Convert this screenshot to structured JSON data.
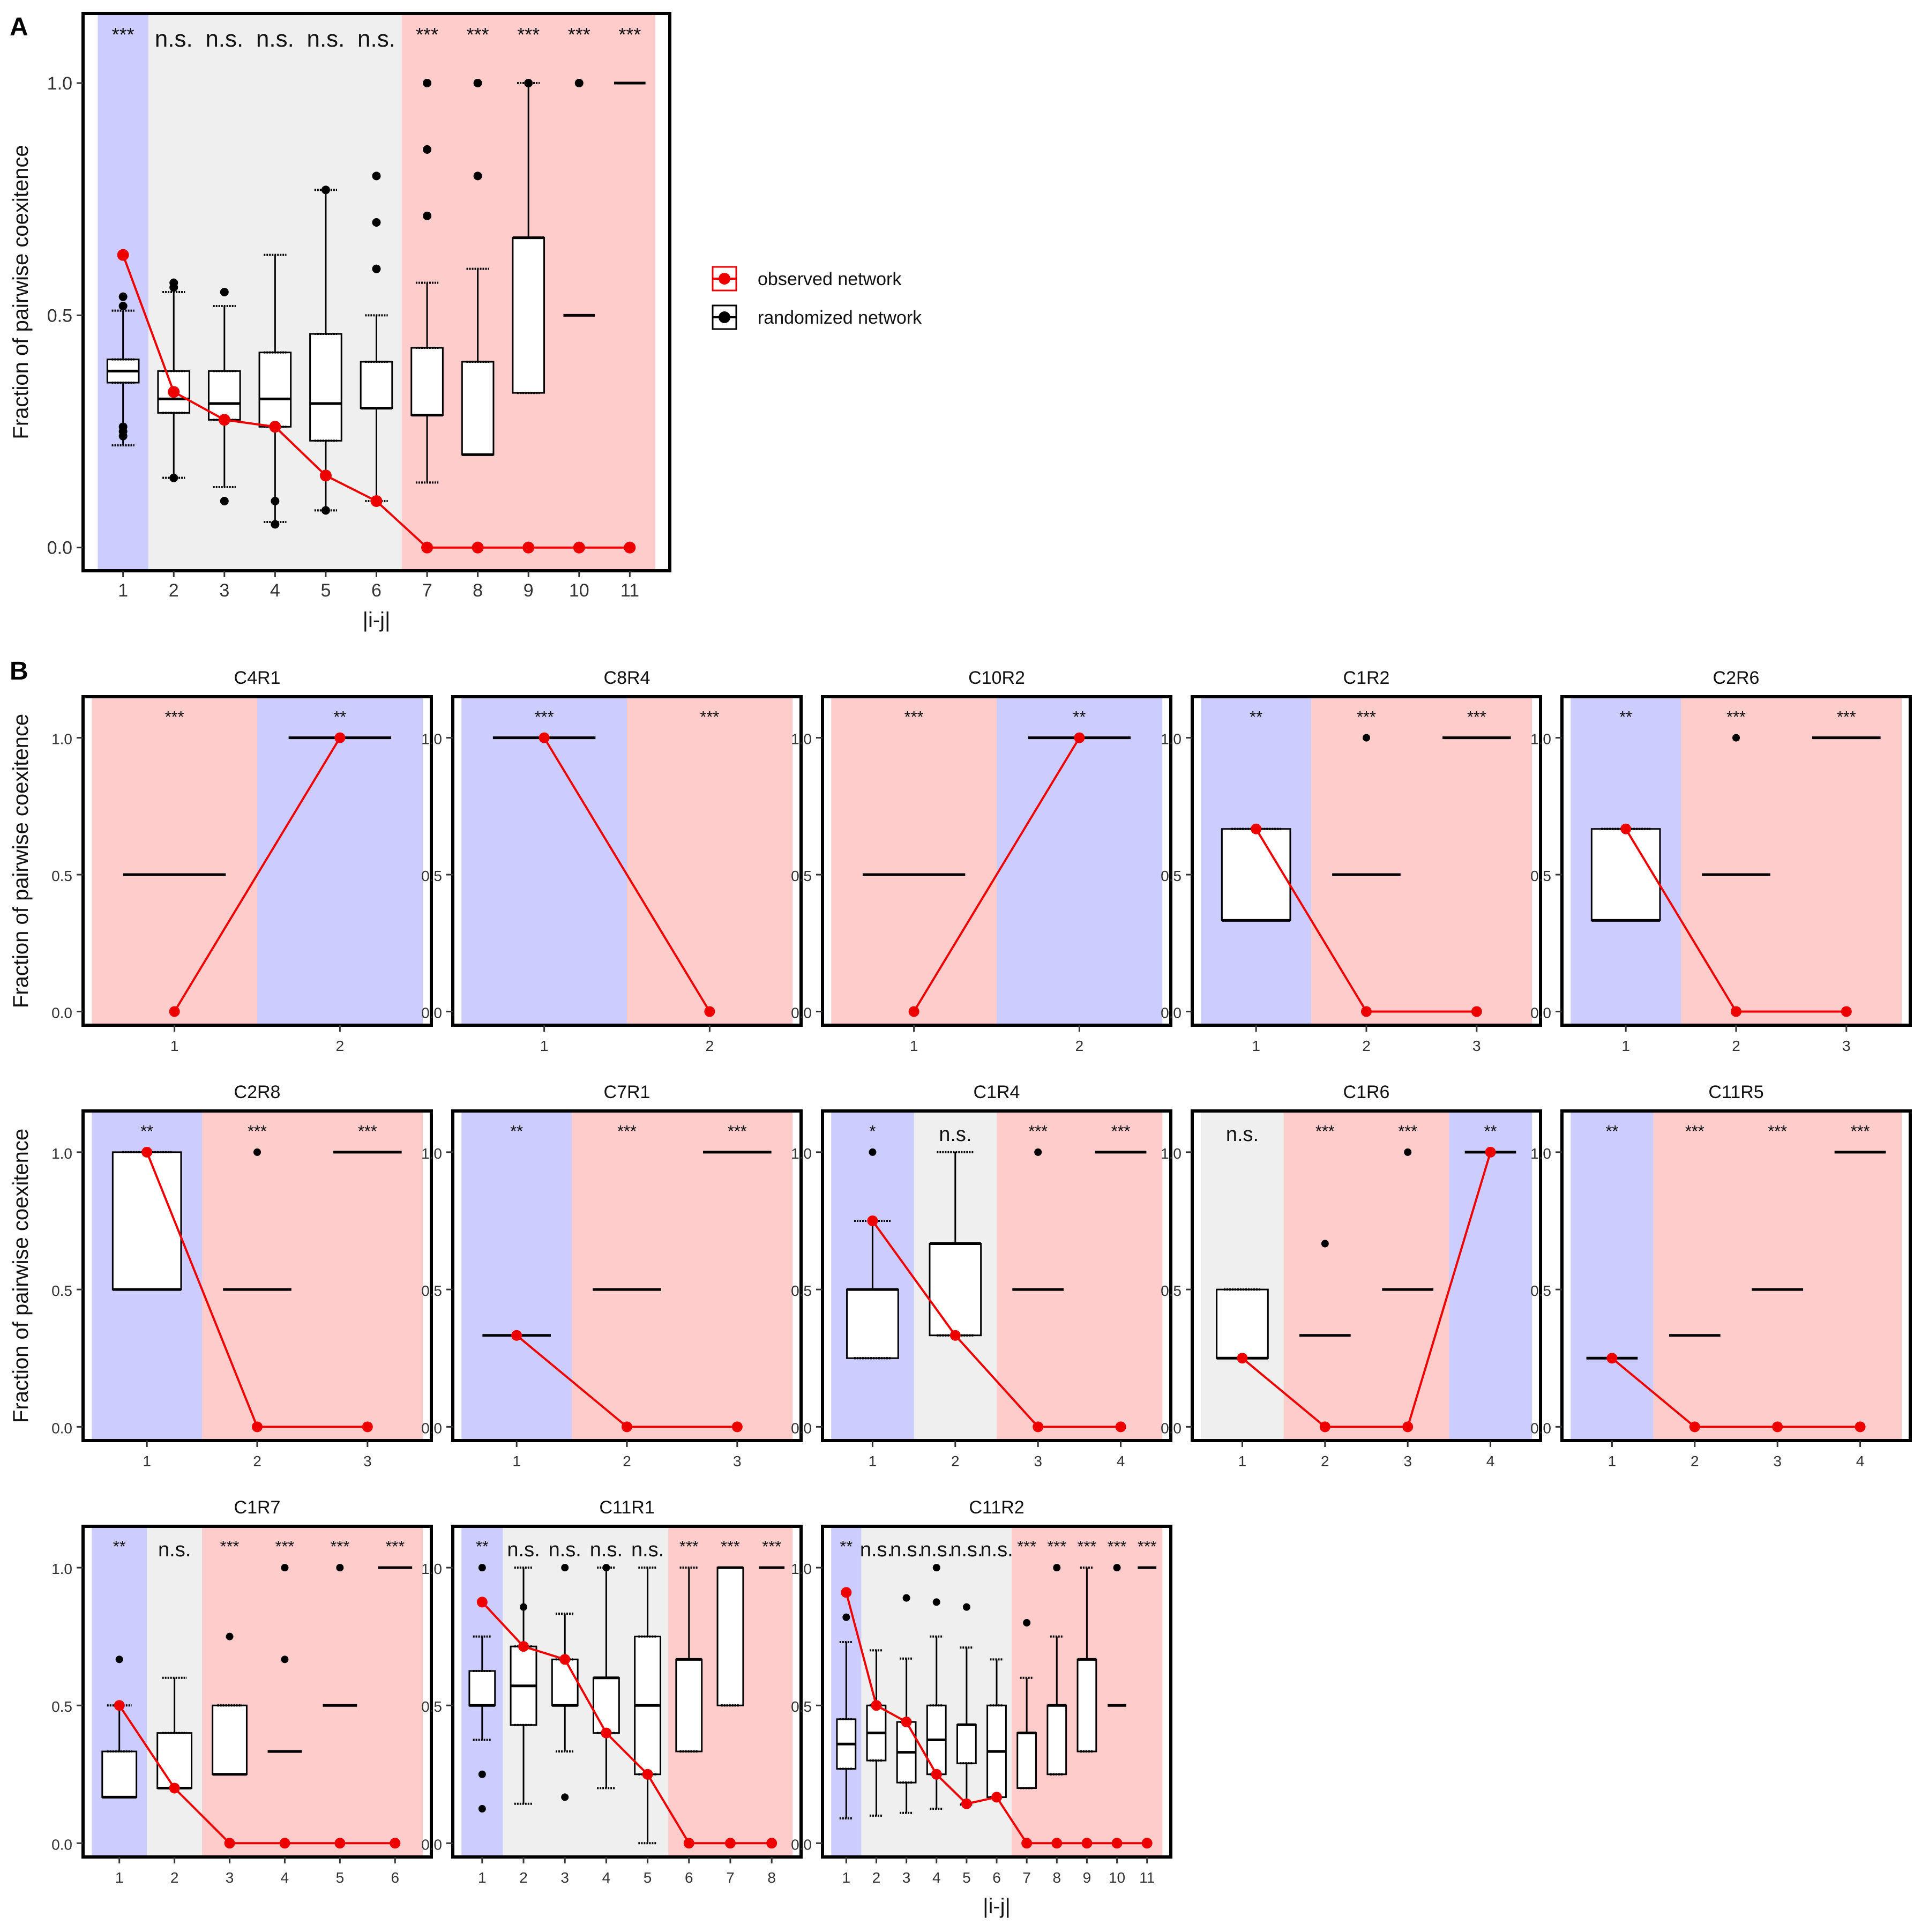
{
  "figure": {
    "panel_labels": [
      "A",
      "B"
    ],
    "colors": {
      "positive_band": "#ccccff",
      "neutral_band": "#efefef",
      "negative_band": "#ffcccc",
      "observed": "#ee0000",
      "randomized": "#000000"
    }
  },
  "chart_data": [
    {
      "id": "A",
      "type": "box",
      "title": "",
      "xlabel": "|i-j|",
      "ylabel": "Fraction of pairwise coexitence",
      "ylim": [
        -0.05,
        1.15
      ],
      "yticks": [
        "0.0",
        "0.5",
        "1.0"
      ],
      "legend": {
        "placement": "right",
        "entries": [
          "observed network",
          "randomized network"
        ]
      },
      "categories": [
        "1",
        "2",
        "3",
        "4",
        "5",
        "6",
        "7",
        "8",
        "9",
        "10",
        "11"
      ],
      "bands": [
        "blue",
        "grey",
        "grey",
        "grey",
        "grey",
        "grey",
        "red",
        "red",
        "red",
        "red",
        "red"
      ],
      "signif": [
        "***",
        "n.s.",
        "n.s.",
        "n.s.",
        "n.s.",
        "n.s.",
        "***",
        "***",
        "***",
        "***",
        "***"
      ],
      "observed": [
        0.63,
        0.335,
        0.275,
        0.26,
        0.155,
        0.1,
        0,
        0,
        0,
        0,
        0
      ],
      "boxes": [
        {
          "lo": 0.22,
          "q1": 0.355,
          "med": 0.38,
          "q3": 0.405,
          "hi": 0.51
        },
        {
          "lo": 0.15,
          "q1": 0.29,
          "med": 0.32,
          "q3": 0.38,
          "hi": 0.55
        },
        {
          "lo": 0.13,
          "q1": 0.275,
          "med": 0.31,
          "q3": 0.38,
          "hi": 0.52
        },
        {
          "lo": 0.055,
          "q1": 0.26,
          "med": 0.32,
          "q3": 0.42,
          "hi": 0.63
        },
        {
          "lo": 0.08,
          "q1": 0.23,
          "med": 0.31,
          "q3": 0.46,
          "hi": 0.77
        },
        {
          "lo": 0.1,
          "q1": 0.3,
          "med": 0.3,
          "q3": 0.4,
          "hi": 0.5
        },
        {
          "lo": 0.14,
          "q1": 0.285,
          "med": 0.285,
          "q3": 0.43,
          "hi": 0.57
        },
        {
          "lo": 0.2,
          "q1": 0.2,
          "med": 0.2,
          "q3": 0.4,
          "hi": 0.6
        },
        {
          "lo": 0.333,
          "q1": 0.333,
          "med": 0.667,
          "q3": 0.667,
          "hi": 1.0
        },
        {
          "lo": 0.5,
          "q1": 0.5,
          "med": 0.5,
          "q3": 0.5,
          "hi": 0.5
        },
        {
          "lo": 1.0,
          "q1": 1.0,
          "med": 1.0,
          "q3": 1.0,
          "hi": 1.0
        }
      ],
      "outliers": [
        [
          0.54,
          0.52,
          0.24,
          0.25,
          0.26
        ],
        [
          0.57,
          0.56,
          0.15
        ],
        [
          0.55,
          0.1
        ],
        [
          0.05,
          0.1
        ],
        [
          0.77,
          0.08
        ],
        [
          0.8,
          0.7,
          0.6,
          0.1
        ],
        [
          1.0,
          0.857,
          0.714
        ],
        [
          1.0,
          0.8
        ],
        [
          1.0
        ],
        [
          1.0
        ],
        []
      ]
    },
    {
      "id": "C4R1",
      "type": "box",
      "title": "C4R1",
      "xlabel": "",
      "ylabel": "Fraction of pairwise coexitence",
      "categories": [
        "1",
        "2"
      ],
      "bands": [
        "red",
        "blue"
      ],
      "signif": [
        "***",
        "**"
      ],
      "observed": [
        0,
        1
      ],
      "boxes": [
        {
          "lo": 0.5,
          "q1": 0.5,
          "med": 0.5,
          "q3": 0.5,
          "hi": 0.5
        },
        {
          "lo": 1,
          "q1": 1,
          "med": 1,
          "q3": 1,
          "hi": 1
        }
      ],
      "outliers": [
        [],
        []
      ]
    },
    {
      "id": "C8R4",
      "type": "box",
      "title": "C8R4",
      "xlabel": "",
      "ylabel": "",
      "categories": [
        "1",
        "2"
      ],
      "bands": [
        "blue",
        "red"
      ],
      "signif": [
        "***",
        "***"
      ],
      "observed": [
        1,
        0
      ],
      "boxes": [
        {
          "lo": 1,
          "q1": 1,
          "med": 1,
          "q3": 1,
          "hi": 1
        },
        null
      ],
      "outliers": [
        [],
        []
      ]
    },
    {
      "id": "C10R2",
      "type": "box",
      "title": "C10R2",
      "xlabel": "",
      "ylabel": "",
      "categories": [
        "1",
        "2"
      ],
      "bands": [
        "red",
        "blue"
      ],
      "signif": [
        "***",
        "**"
      ],
      "observed": [
        0,
        1
      ],
      "boxes": [
        {
          "lo": 0.5,
          "q1": 0.5,
          "med": 0.5,
          "q3": 0.5,
          "hi": 0.5
        },
        {
          "lo": 1,
          "q1": 1,
          "med": 1,
          "q3": 1,
          "hi": 1
        }
      ],
      "outliers": [
        [],
        []
      ]
    },
    {
      "id": "C1R2",
      "type": "box",
      "title": "C1R2",
      "xlabel": "",
      "ylabel": "",
      "categories": [
        "1",
        "2",
        "3"
      ],
      "bands": [
        "blue",
        "red",
        "red"
      ],
      "signif": [
        "**",
        "***",
        "***"
      ],
      "observed": [
        0.667,
        0,
        0
      ],
      "boxes": [
        {
          "lo": 0.333,
          "q1": 0.333,
          "med": 0.333,
          "q3": 0.667,
          "hi": 0.667
        },
        {
          "lo": 0.5,
          "q1": 0.5,
          "med": 0.5,
          "q3": 0.5,
          "hi": 0.5
        },
        {
          "lo": 1,
          "q1": 1,
          "med": 1,
          "q3": 1,
          "hi": 1
        }
      ],
      "outliers": [
        [],
        [
          1.0
        ],
        []
      ]
    },
    {
      "id": "C2R6",
      "type": "box",
      "title": "C2R6",
      "xlabel": "",
      "ylabel": "",
      "categories": [
        "1",
        "2",
        "3"
      ],
      "bands": [
        "blue",
        "red",
        "red"
      ],
      "signif": [
        "**",
        "***",
        "***"
      ],
      "observed": [
        0.667,
        0,
        0
      ],
      "boxes": [
        {
          "lo": 0.333,
          "q1": 0.333,
          "med": 0.333,
          "q3": 0.667,
          "hi": 0.667
        },
        {
          "lo": 0.5,
          "q1": 0.5,
          "med": 0.5,
          "q3": 0.5,
          "hi": 0.5
        },
        {
          "lo": 1,
          "q1": 1,
          "med": 1,
          "q3": 1,
          "hi": 1
        }
      ],
      "outliers": [
        [],
        [
          1.0
        ],
        []
      ]
    },
    {
      "id": "C2R8",
      "type": "box",
      "title": "C2R8",
      "xlabel": "",
      "ylabel": "Fraction of pairwise coexitence",
      "categories": [
        "1",
        "2",
        "3"
      ],
      "bands": [
        "blue",
        "red",
        "red"
      ],
      "signif": [
        "**",
        "***",
        "***"
      ],
      "observed": [
        1,
        0,
        0
      ],
      "boxes": [
        {
          "lo": 0.5,
          "q1": 0.5,
          "med": 0.5,
          "q3": 1,
          "hi": 1
        },
        {
          "lo": 0.5,
          "q1": 0.5,
          "med": 0.5,
          "q3": 0.5,
          "hi": 0.5
        },
        {
          "lo": 1,
          "q1": 1,
          "med": 1,
          "q3": 1,
          "hi": 1
        }
      ],
      "outliers": [
        [],
        [
          1.0
        ],
        []
      ]
    },
    {
      "id": "C7R1",
      "type": "box",
      "title": "C7R1",
      "xlabel": "",
      "ylabel": "",
      "categories": [
        "1",
        "2",
        "3"
      ],
      "bands": [
        "blue",
        "red",
        "red"
      ],
      "signif": [
        "**",
        "***",
        "***"
      ],
      "observed": [
        0.333,
        0,
        0
      ],
      "boxes": [
        {
          "lo": 0.333,
          "q1": 0.333,
          "med": 0.333,
          "q3": 0.333,
          "hi": 0.333
        },
        {
          "lo": 0.5,
          "q1": 0.5,
          "med": 0.5,
          "q3": 0.5,
          "hi": 0.5
        },
        {
          "lo": 1,
          "q1": 1,
          "med": 1,
          "q3": 1,
          "hi": 1
        }
      ],
      "outliers": [
        [],
        [],
        []
      ]
    },
    {
      "id": "C1R4",
      "type": "box",
      "title": "C1R4",
      "xlabel": "",
      "ylabel": "",
      "categories": [
        "1",
        "2",
        "3",
        "4"
      ],
      "bands": [
        "blue",
        "grey",
        "red",
        "red"
      ],
      "signif": [
        "*",
        "n.s.",
        "***",
        "***"
      ],
      "observed": [
        0.75,
        0.333,
        0,
        0
      ],
      "boxes": [
        {
          "lo": 0.25,
          "q1": 0.25,
          "med": 0.5,
          "q3": 0.5,
          "hi": 0.75
        },
        {
          "lo": 0.333,
          "q1": 0.333,
          "med": 0.667,
          "q3": 0.667,
          "hi": 1
        },
        {
          "lo": 0.5,
          "q1": 0.5,
          "med": 0.5,
          "q3": 0.5,
          "hi": 0.5
        },
        {
          "lo": 1,
          "q1": 1,
          "med": 1,
          "q3": 1,
          "hi": 1
        }
      ],
      "outliers": [
        [
          1.0
        ],
        [],
        [
          1.0
        ],
        []
      ]
    },
    {
      "id": "C1R6",
      "type": "box",
      "title": "C1R6",
      "xlabel": "",
      "ylabel": "",
      "categories": [
        "1",
        "2",
        "3",
        "4"
      ],
      "bands": [
        "grey",
        "red",
        "red",
        "blue"
      ],
      "signif": [
        "n.s.",
        "***",
        "***",
        "**"
      ],
      "observed": [
        0.25,
        0,
        0,
        1
      ],
      "boxes": [
        {
          "lo": 0.25,
          "q1": 0.25,
          "med": 0.25,
          "q3": 0.5,
          "hi": 0.5
        },
        {
          "lo": 0.333,
          "q1": 0.333,
          "med": 0.333,
          "q3": 0.333,
          "hi": 0.333
        },
        {
          "lo": 0.5,
          "q1": 0.5,
          "med": 0.5,
          "q3": 0.5,
          "hi": 0.5
        },
        {
          "lo": 1,
          "q1": 1,
          "med": 1,
          "q3": 1,
          "hi": 1
        }
      ],
      "outliers": [
        [],
        [
          0.667
        ],
        [
          1.0
        ],
        []
      ]
    },
    {
      "id": "C11R5",
      "type": "box",
      "title": "C11R5",
      "xlabel": "",
      "ylabel": "",
      "categories": [
        "1",
        "2",
        "3",
        "4"
      ],
      "bands": [
        "blue",
        "red",
        "red",
        "red"
      ],
      "signif": [
        "**",
        "***",
        "***",
        "***"
      ],
      "observed": [
        0.25,
        0,
        0,
        0
      ],
      "boxes": [
        {
          "lo": 0.25,
          "q1": 0.25,
          "med": 0.25,
          "q3": 0.25,
          "hi": 0.25
        },
        {
          "lo": 0.333,
          "q1": 0.333,
          "med": 0.333,
          "q3": 0.333,
          "hi": 0.333
        },
        {
          "lo": 0.5,
          "q1": 0.5,
          "med": 0.5,
          "q3": 0.5,
          "hi": 0.5
        },
        {
          "lo": 1,
          "q1": 1,
          "med": 1,
          "q3": 1,
          "hi": 1
        }
      ],
      "outliers": [
        [],
        [],
        [],
        []
      ]
    },
    {
      "id": "C1R7",
      "type": "box",
      "title": "C1R7",
      "xlabel": "",
      "ylabel": "",
      "categories": [
        "1",
        "2",
        "3",
        "4",
        "5",
        "6"
      ],
      "bands": [
        "blue",
        "grey",
        "red",
        "red",
        "red",
        "red"
      ],
      "signif": [
        "**",
        "n.s.",
        "***",
        "***",
        "***",
        "***"
      ],
      "observed": [
        0.5,
        0.2,
        0,
        0,
        0,
        0
      ],
      "boxes": [
        {
          "lo": 0.167,
          "q1": 0.167,
          "med": 0.167,
          "q3": 0.333,
          "hi": 0.5
        },
        {
          "lo": 0.2,
          "q1": 0.2,
          "med": 0.2,
          "q3": 0.4,
          "hi": 0.6
        },
        {
          "lo": 0.25,
          "q1": 0.25,
          "med": 0.25,
          "q3": 0.5,
          "hi": 0.5
        },
        {
          "lo": 0.333,
          "q1": 0.333,
          "med": 0.333,
          "q3": 0.333,
          "hi": 0.333
        },
        {
          "lo": 0.5,
          "q1": 0.5,
          "med": 0.5,
          "q3": 0.5,
          "hi": 0.5
        },
        {
          "lo": 1,
          "q1": 1,
          "med": 1,
          "q3": 1,
          "hi": 1
        }
      ],
      "outliers": [
        [
          0.667
        ],
        [],
        [
          0.75
        ],
        [
          0.667,
          1.0
        ],
        [
          1.0
        ],
        []
      ]
    },
    {
      "id": "C11R1",
      "type": "box",
      "title": "C11R1",
      "xlabel": "",
      "ylabel": "",
      "categories": [
        "1",
        "2",
        "3",
        "4",
        "5",
        "6",
        "7",
        "8"
      ],
      "bands": [
        "blue",
        "grey",
        "grey",
        "grey",
        "grey",
        "red",
        "red",
        "red"
      ],
      "signif": [
        "**",
        "n.s.",
        "n.s.",
        "n.s.",
        "n.s.",
        "***",
        "***",
        "***"
      ],
      "observed": [
        0.875,
        0.714,
        0.667,
        0.4,
        0.25,
        0,
        0,
        0
      ],
      "boxes": [
        {
          "lo": 0.375,
          "q1": 0.5,
          "med": 0.5,
          "q3": 0.625,
          "hi": 0.75
        },
        {
          "lo": 0.143,
          "q1": 0.429,
          "med": 0.571,
          "q3": 0.714,
          "hi": 1
        },
        {
          "lo": 0.333,
          "q1": 0.5,
          "med": 0.5,
          "q3": 0.667,
          "hi": 0.833
        },
        {
          "lo": 0.2,
          "q1": 0.4,
          "med": 0.6,
          "q3": 0.6,
          "hi": 1
        },
        {
          "lo": 0,
          "q1": 0.25,
          "med": 0.5,
          "q3": 0.75,
          "hi": 1
        },
        {
          "lo": 0.333,
          "q1": 0.333,
          "med": 0.667,
          "q3": 0.667,
          "hi": 1
        },
        {
          "lo": 0.5,
          "q1": 0.5,
          "med": 1,
          "q3": 1,
          "hi": 1
        },
        {
          "lo": 1,
          "q1": 1,
          "med": 1,
          "q3": 1,
          "hi": 1
        }
      ],
      "outliers": [
        [
          1.0,
          0.875,
          0.25,
          0.125
        ],
        [
          0.857
        ],
        [
          0.167,
          1.0
        ],
        [
          1.0
        ],
        [],
        [],
        [],
        []
      ]
    },
    {
      "id": "C11R2",
      "type": "box",
      "title": "C11R2",
      "xlabel": "|i-j|",
      "ylabel": "",
      "categories": [
        "1",
        "2",
        "3",
        "4",
        "5",
        "6",
        "7",
        "8",
        "9",
        "10",
        "11"
      ],
      "bands": [
        "blue",
        "grey",
        "grey",
        "grey",
        "grey",
        "grey",
        "red",
        "red",
        "red",
        "red",
        "red"
      ],
      "signif": [
        "**",
        "n.s.",
        "n.s.",
        "n.s.",
        "n.s.",
        "n.s.",
        "***",
        "***",
        "***",
        "***",
        "***"
      ],
      "observed": [
        0.91,
        0.5,
        0.44,
        0.25,
        0.143,
        0.167,
        0,
        0,
        0,
        0,
        0
      ],
      "boxes": [
        {
          "lo": 0.09,
          "q1": 0.27,
          "med": 0.36,
          "q3": 0.45,
          "hi": 0.73
        },
        {
          "lo": 0.1,
          "q1": 0.3,
          "med": 0.4,
          "q3": 0.5,
          "hi": 0.7
        },
        {
          "lo": 0.11,
          "q1": 0.22,
          "med": 0.33,
          "q3": 0.44,
          "hi": 0.67
        },
        {
          "lo": 0.125,
          "q1": 0.25,
          "med": 0.375,
          "q3": 0.5,
          "hi": 0.75
        },
        {
          "lo": 0.14,
          "q1": 0.29,
          "med": 0.43,
          "q3": 0.43,
          "hi": 0.71
        },
        {
          "lo": 0.167,
          "q1": 0.167,
          "med": 0.333,
          "q3": 0.5,
          "hi": 0.667
        },
        {
          "lo": 0.2,
          "q1": 0.2,
          "med": 0.4,
          "q3": 0.4,
          "hi": 0.6
        },
        {
          "lo": 0.25,
          "q1": 0.25,
          "med": 0.5,
          "q3": 0.5,
          "hi": 0.75
        },
        {
          "lo": 0.333,
          "q1": 0.333,
          "med": 0.667,
          "q3": 0.667,
          "hi": 1
        },
        {
          "lo": 0.5,
          "q1": 0.5,
          "med": 0.5,
          "q3": 0.5,
          "hi": 0.5
        },
        {
          "lo": 1,
          "q1": 1,
          "med": 1,
          "q3": 1,
          "hi": 1
        }
      ],
      "outliers": [
        [
          0.82
        ],
        [],
        [
          0.89
        ],
        [
          1.0,
          0.875
        ],
        [
          0.857
        ],
        [],
        [
          0.8
        ],
        [
          1.0
        ],
        [],
        [
          1.0
        ],
        []
      ]
    }
  ]
}
